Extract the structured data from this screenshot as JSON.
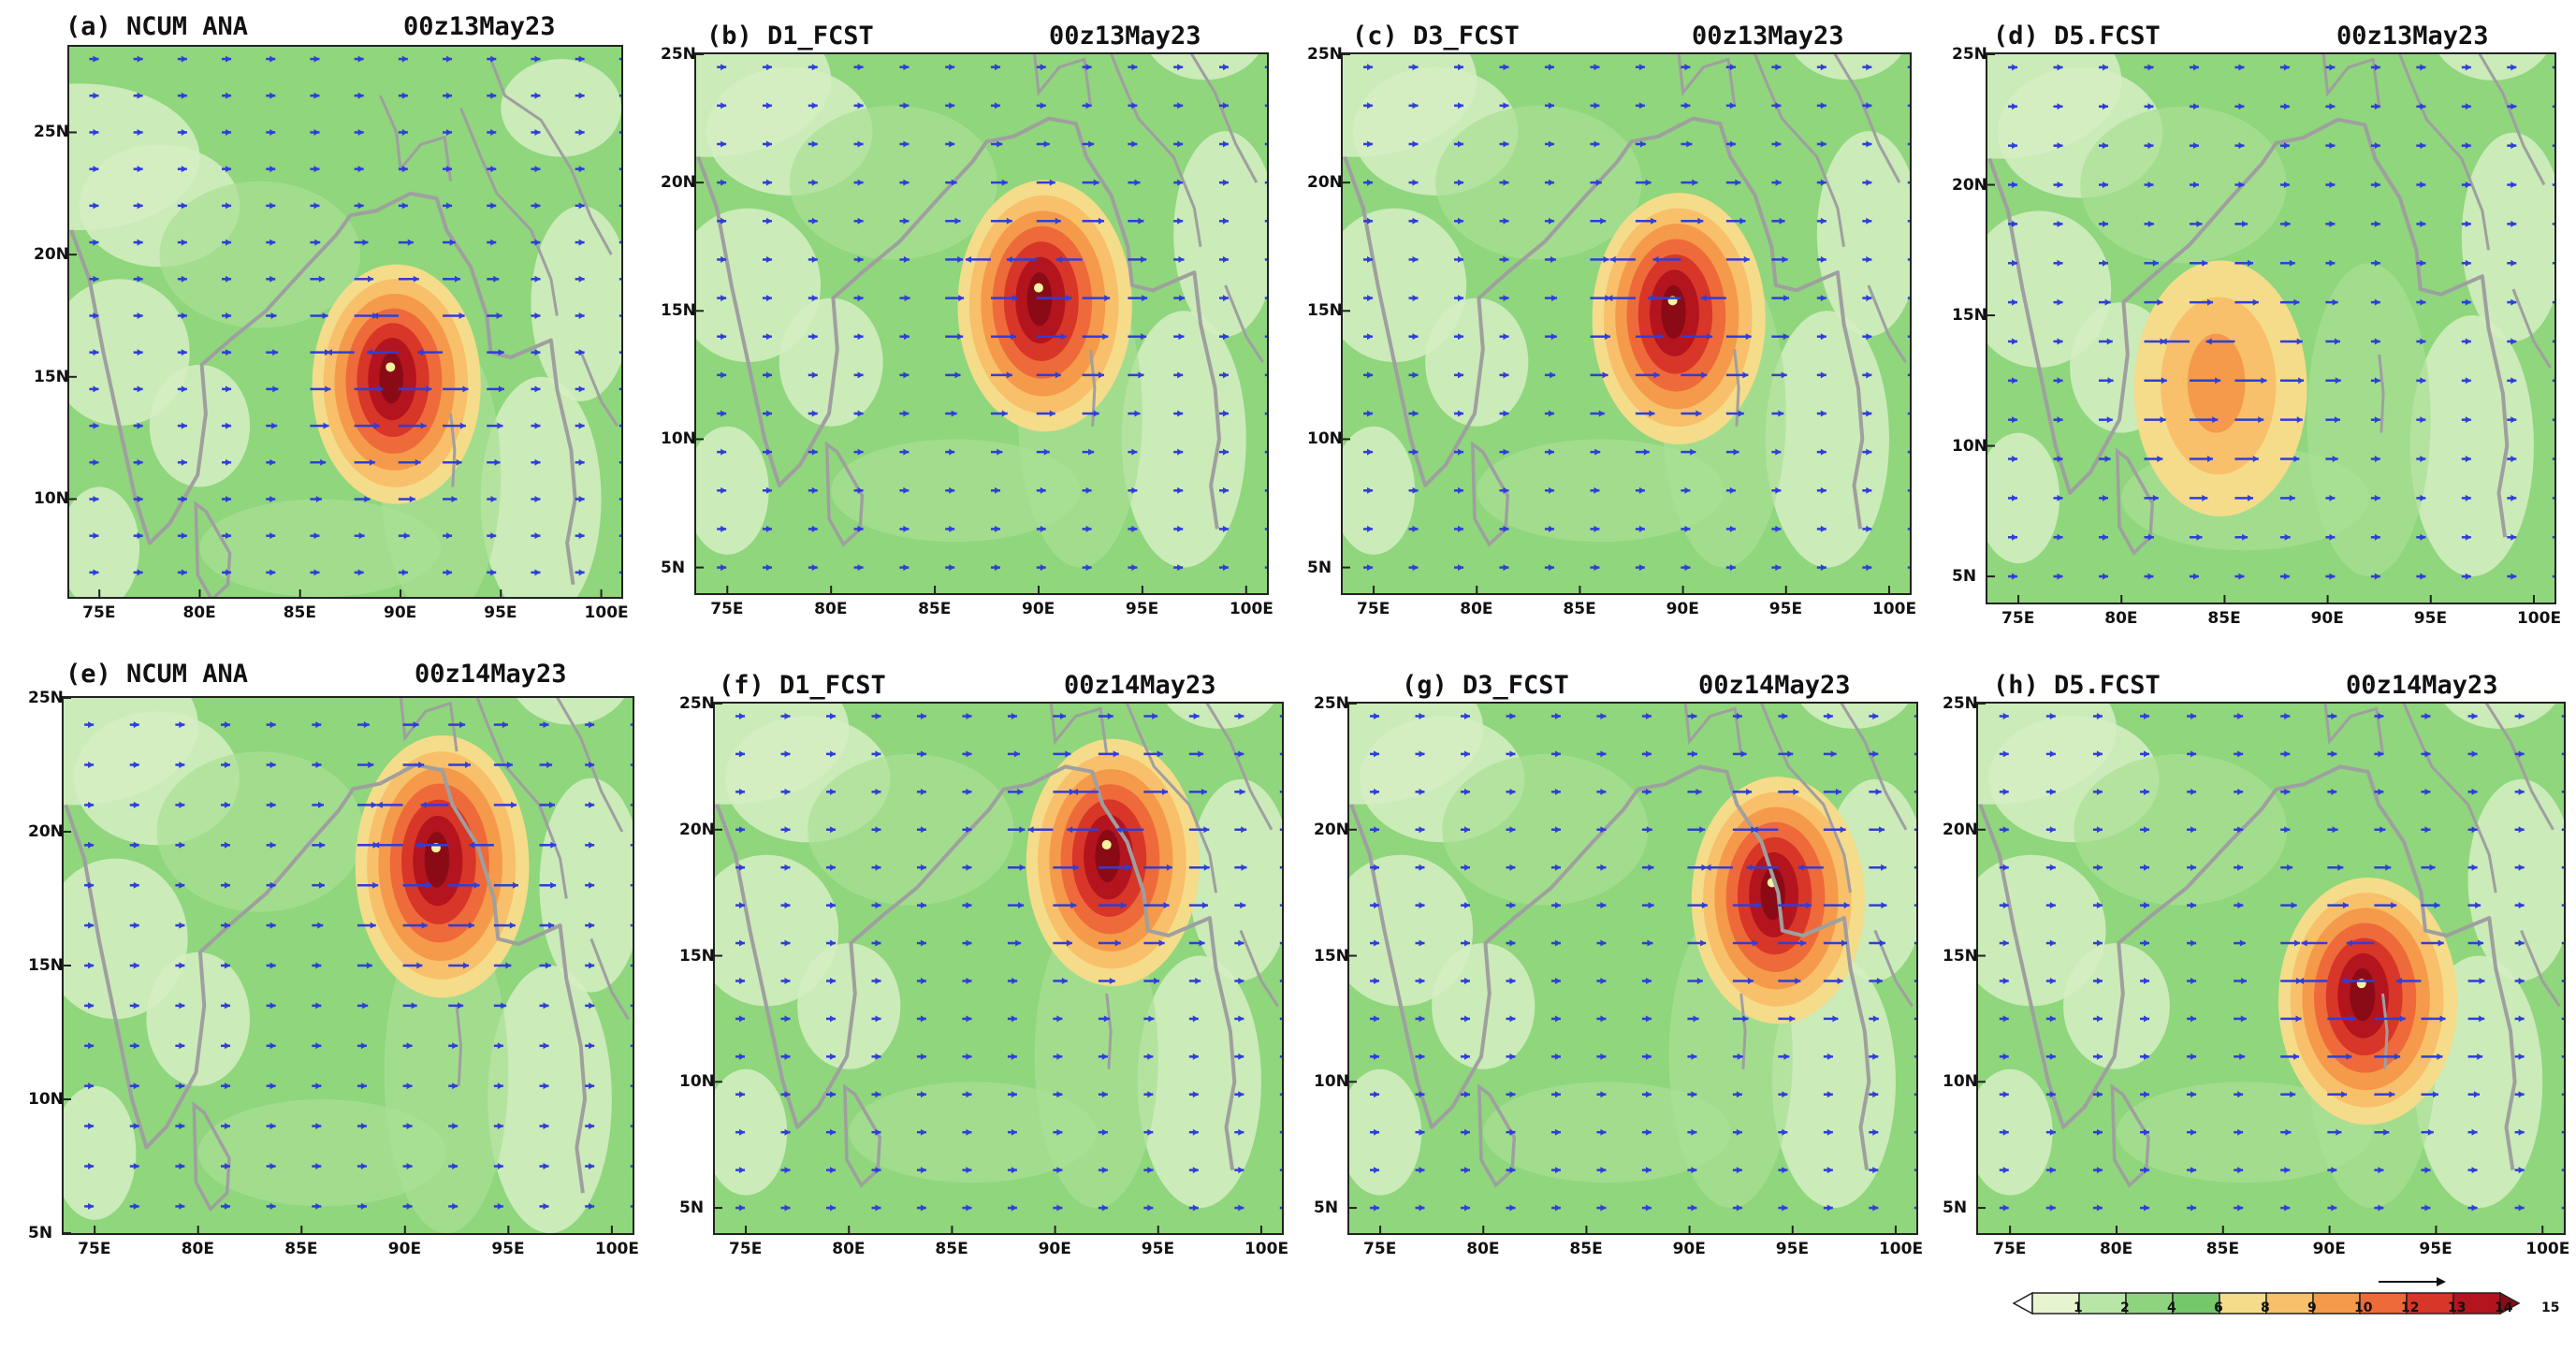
{
  "panels": [
    {
      "label": "(a) NCUM ANA",
      "time": "00z13May23",
      "lat_labels": [
        "10N",
        "15N",
        "20N",
        "25N"
      ],
      "lon_labels": [
        "75E",
        "80E",
        "85E",
        "90E",
        "95E",
        "100E"
      ],
      "storm": {
        "lon": 89.5,
        "lat": 15.0,
        "max": 15
      }
    },
    {
      "label": "(b) D1_FCST",
      "time": "00z13May23",
      "lat_labels": [
        "5N",
        "10N",
        "15N",
        "20N",
        "25N"
      ],
      "lon_labels": [
        "75E",
        "80E",
        "85E",
        "90E",
        "95E",
        "100E"
      ],
      "storm": {
        "lon": 90.0,
        "lat": 15.5,
        "max": 15
      }
    },
    {
      "label": "(c) D3_FCST",
      "time": "00z13May23",
      "lat_labels": [
        "5N",
        "10N",
        "15N",
        "20N",
        "25N"
      ],
      "lon_labels": [
        "75E",
        "80E",
        "85E",
        "90E",
        "95E",
        "100E"
      ],
      "storm": {
        "lon": 89.5,
        "lat": 15.0,
        "max": 15
      }
    },
    {
      "label": "(d) D5.FCST",
      "time": "00z13May23",
      "lat_labels": [
        "5N",
        "10N",
        "15N",
        "20N",
        "25N"
      ],
      "lon_labels": [
        "75E",
        "80E",
        "85E",
        "90E",
        "95E",
        "100E"
      ],
      "storm": {
        "lon": 84.5,
        "lat": 12.5,
        "max": 8
      }
    },
    {
      "label": "(e) NCUM ANA",
      "time": "00z14May23",
      "lat_labels": [
        "5N",
        "10N",
        "15N",
        "20N",
        "25N"
      ],
      "lon_labels": [
        "75E",
        "80E",
        "85E",
        "90E",
        "95E",
        "100E"
      ],
      "storm": {
        "lon": 91.5,
        "lat": 19.0,
        "max": 15
      }
    },
    {
      "label": "(f) D1_FCST",
      "time": "00z14May23",
      "lat_labels": [
        "5N",
        "10N",
        "15N",
        "20N",
        "25N"
      ],
      "lon_labels": [
        "75E",
        "80E",
        "85E",
        "90E",
        "95E",
        "100E"
      ],
      "storm": {
        "lon": 92.5,
        "lat": 19.0,
        "max": 15
      }
    },
    {
      "label": "(g) D3_FCST",
      "time": "00z14May23",
      "lat_labels": [
        "5N",
        "10N",
        "15N",
        "20N",
        "25N"
      ],
      "lon_labels": [
        "75E",
        "80E",
        "85E",
        "90E",
        "95E",
        "100E"
      ],
      "storm": {
        "lon": 94.0,
        "lat": 17.5,
        "max": 15
      }
    },
    {
      "label": "(h) D5.FCST",
      "time": "00z14May23",
      "lat_labels": [
        "5N",
        "10N",
        "15N",
        "20N",
        "25N"
      ],
      "lon_labels": [
        "75E",
        "80E",
        "85E",
        "90E",
        "95E",
        "100E"
      ],
      "storm": {
        "lon": 91.5,
        "lat": 13.5,
        "max": 14
      }
    }
  ],
  "colorbar": {
    "levels": [
      "1",
      "2",
      "4",
      "6",
      "8",
      "9",
      "10",
      "12",
      "13",
      "14",
      "15"
    ],
    "colors": [
      "#ffffff",
      "#e6f5d0",
      "#b8e6a6",
      "#8ed47f",
      "#74c86a",
      "#f5dc8a",
      "#f8c06a",
      "#f59a4a",
      "#ee6a3a",
      "#d83628",
      "#b4141e",
      "#8a0b16"
    ]
  },
  "style": {
    "ocean": "#8fd67d",
    "land_light": "#d6efc3",
    "coast": "#9f9f9f",
    "vector": "#2f3ed9"
  }
}
